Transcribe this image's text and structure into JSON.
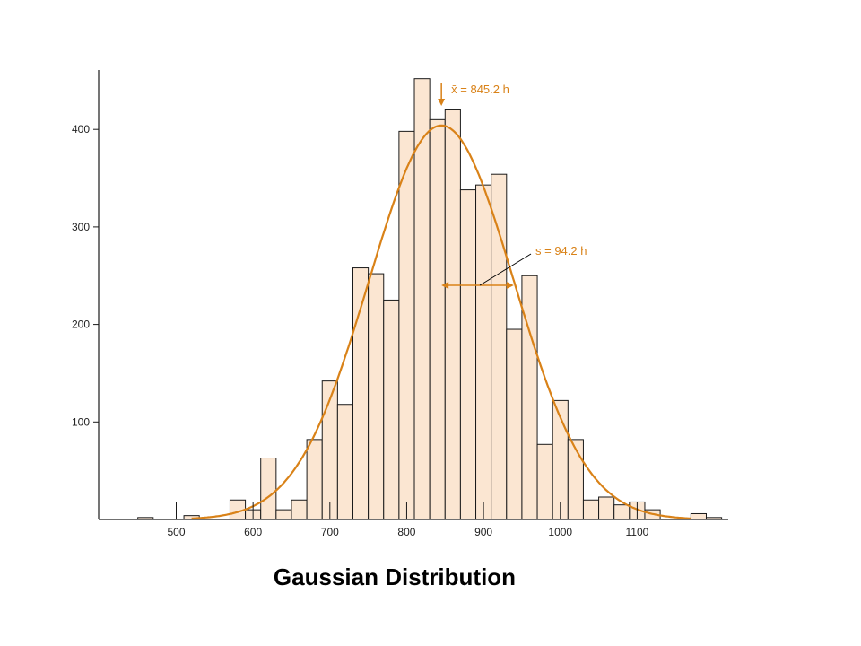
{
  "caption": "Gaussian Distribution",
  "colors": {
    "bar_fill": "#fbe6d2",
    "bar_stroke": "#1a1a1a",
    "curve": "#d98218",
    "annotation": "#d98218",
    "axis": "#1a1a1a"
  },
  "chart_data": {
    "type": "bar",
    "title": "",
    "xlabel": "",
    "ylabel": "",
    "bin_width": 20,
    "xlim": [
      420,
      1200
    ],
    "ylim": [
      0,
      460
    ],
    "x_ticks": [
      500,
      600,
      700,
      800,
      900,
      1000,
      1100
    ],
    "y_ticks": [
      100,
      200,
      300,
      400
    ],
    "bins": [
      {
        "start": 450,
        "count": 2
      },
      {
        "start": 470,
        "count": 0
      },
      {
        "start": 490,
        "count": 0
      },
      {
        "start": 510,
        "count": 4
      },
      {
        "start": 530,
        "count": 0
      },
      {
        "start": 550,
        "count": 0
      },
      {
        "start": 570,
        "count": 20
      },
      {
        "start": 590,
        "count": 10
      },
      {
        "start": 610,
        "count": 63
      },
      {
        "start": 630,
        "count": 10
      },
      {
        "start": 650,
        "count": 20
      },
      {
        "start": 670,
        "count": 82
      },
      {
        "start": 690,
        "count": 142
      },
      {
        "start": 710,
        "count": 118
      },
      {
        "start": 730,
        "count": 258
      },
      {
        "start": 750,
        "count": 252
      },
      {
        "start": 770,
        "count": 225
      },
      {
        "start": 790,
        "count": 398
      },
      {
        "start": 810,
        "count": 452
      },
      {
        "start": 830,
        "count": 410
      },
      {
        "start": 850,
        "count": 420
      },
      {
        "start": 870,
        "count": 338
      },
      {
        "start": 890,
        "count": 343
      },
      {
        "start": 910,
        "count": 354
      },
      {
        "start": 930,
        "count": 195
      },
      {
        "start": 950,
        "count": 250
      },
      {
        "start": 970,
        "count": 77
      },
      {
        "start": 990,
        "count": 122
      },
      {
        "start": 1010,
        "count": 82
      },
      {
        "start": 1030,
        "count": 20
      },
      {
        "start": 1050,
        "count": 23
      },
      {
        "start": 1070,
        "count": 15
      },
      {
        "start": 1090,
        "count": 18
      },
      {
        "start": 1110,
        "count": 10
      },
      {
        "start": 1130,
        "count": 0
      },
      {
        "start": 1150,
        "count": 0
      },
      {
        "start": 1170,
        "count": 6
      },
      {
        "start": 1190,
        "count": 2
      }
    ],
    "fit_curve": {
      "type": "gaussian",
      "mean": 845.2,
      "sd": 94.2,
      "peak": 404
    },
    "annotations": {
      "mean_label": "x̄ = 845.2 h",
      "sd_label": "s = 94.2 h"
    }
  }
}
